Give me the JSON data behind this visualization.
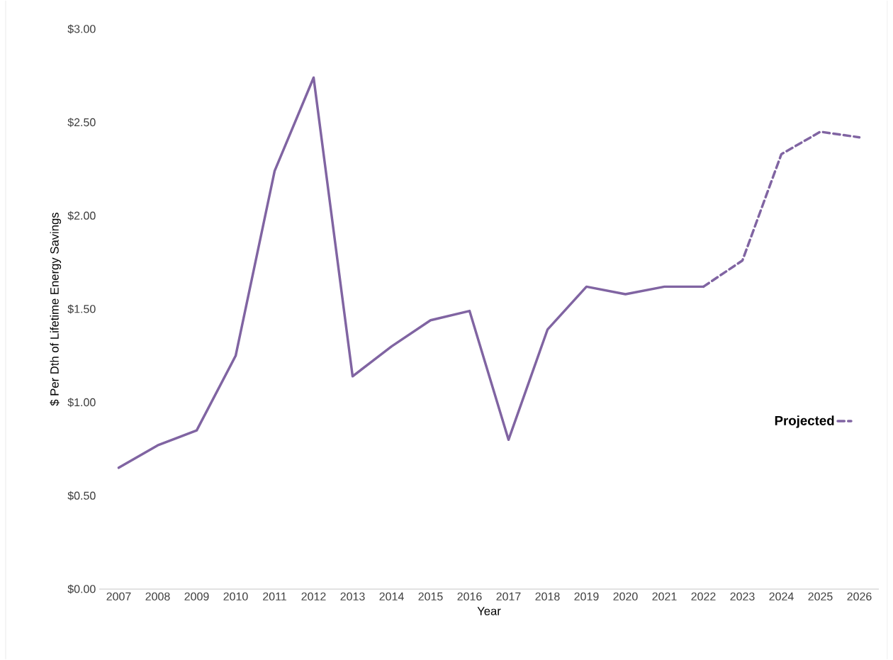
{
  "chart_data": {
    "type": "line",
    "xlabel": "Year",
    "ylabel": "$ Per Dth of Lifetime Energy Savings",
    "categories": [
      "2007",
      "2008",
      "2009",
      "2010",
      "2011",
      "2012",
      "2013",
      "2014",
      "2015",
      "2016",
      "2017",
      "2018",
      "2019",
      "2020",
      "2021",
      "2022",
      "2023",
      "2024",
      "2025",
      "2026"
    ],
    "series": [
      {
        "color": "#8064a2",
        "line_style": "solid",
        "values": [
          0.65,
          0.77,
          0.85,
          1.25,
          2.24,
          2.74,
          1.14,
          1.3,
          1.44,
          1.49,
          0.8,
          1.39,
          1.62,
          1.58,
          1.62,
          1.62,
          null,
          null,
          null,
          null
        ]
      },
      {
        "name": "Projected",
        "color": "#8064a2",
        "line_style": "dashed",
        "values": [
          null,
          null,
          null,
          null,
          null,
          null,
          null,
          null,
          null,
          null,
          null,
          null,
          null,
          null,
          null,
          1.62,
          1.76,
          2.33,
          2.45,
          2.42
        ]
      }
    ],
    "ylim": [
      0,
      3
    ],
    "yticks": [
      {
        "value": 0,
        "label": "$0.00"
      },
      {
        "value": 0.5,
        "label": "$0.50"
      },
      {
        "value": 1,
        "label": "$1.00"
      },
      {
        "value": 1.5,
        "label": "$1.50"
      },
      {
        "value": 2,
        "label": "$2.00"
      },
      {
        "value": 2.5,
        "label": "$2.50"
      },
      {
        "value": 3,
        "label": "$3.00"
      }
    ],
    "grid": false,
    "legend": "right",
    "marker": "none"
  }
}
